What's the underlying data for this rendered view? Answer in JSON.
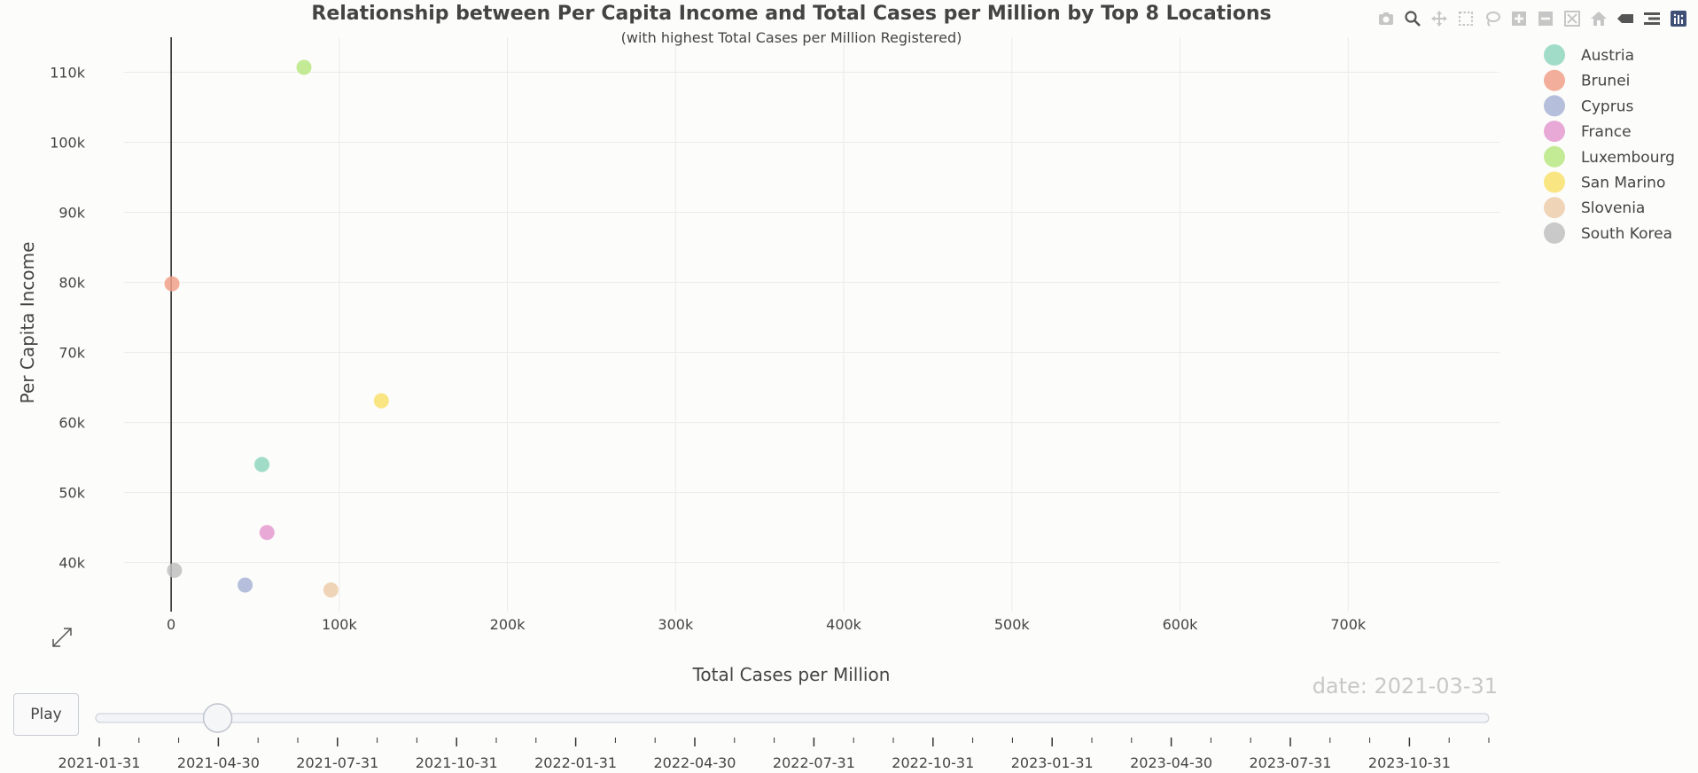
{
  "chart_data": {
    "type": "scatter",
    "title": "Relationship between Per Capita Income and Total Cases per Million by Top 8 Locations",
    "subtitle": "(with highest Total Cases per Million Registered)",
    "xlabel": "Total Cases per Million",
    "ylabel": "Per Capita Income",
    "xlim": [
      -28000,
      790000
    ],
    "ylim": [
      33000,
      115000
    ],
    "x_ticks": [
      0,
      100000,
      200000,
      300000,
      400000,
      500000,
      600000,
      700000
    ],
    "x_tick_labels": [
      "0",
      "100k",
      "200k",
      "300k",
      "400k",
      "500k",
      "600k",
      "700k"
    ],
    "y_ticks": [
      40000,
      50000,
      60000,
      70000,
      80000,
      90000,
      100000,
      110000
    ],
    "y_tick_labels": [
      "40k",
      "50k",
      "60k",
      "70k",
      "80k",
      "90k",
      "100k",
      "110k"
    ],
    "grid": true,
    "legend_position": "top-right",
    "series": [
      {
        "name": "Austria",
        "color": "#8fd6be",
        "x": 54000,
        "y": 54000
      },
      {
        "name": "Brunei",
        "color": "#f0a088",
        "x": 500,
        "y": 79800
      },
      {
        "name": "Cyprus",
        "color": "#a8b4d6",
        "x": 44000,
        "y": 36800
      },
      {
        "name": "France",
        "color": "#e49ad0",
        "x": 57000,
        "y": 44300
      },
      {
        "name": "Luxembourg",
        "color": "#b8e882",
        "x": 79000,
        "y": 110700
      },
      {
        "name": "San Marino",
        "color": "#f8e06c",
        "x": 125000,
        "y": 63100
      },
      {
        "name": "Slovenia",
        "color": "#ecccaa",
        "x": 95000,
        "y": 36100
      },
      {
        "name": "South Korea",
        "color": "#c0c0c0",
        "x": 2000,
        "y": 38900
      }
    ],
    "current_frame": "date: 2021-03-31",
    "slider": {
      "labels": [
        "2021-01-31",
        "2021-04-30",
        "2021-07-31",
        "2021-10-31",
        "2022-01-31",
        "2022-04-30",
        "2022-07-31",
        "2022-10-31",
        "2023-01-31",
        "2023-04-30",
        "2023-07-31",
        "2023-10-31"
      ],
      "tick_count": 36,
      "position": 2
    }
  },
  "controls": {
    "play_label": "Play"
  },
  "modebar_icons": [
    "camera-icon",
    "zoom-icon",
    "pan-icon",
    "box-select-icon",
    "lasso-icon",
    "zoom-in-icon",
    "zoom-out-icon",
    "autoscale-icon",
    "reset-axes-icon",
    "spike-lines-icon",
    "compare-hover-icon",
    "plotly-logo-icon"
  ]
}
